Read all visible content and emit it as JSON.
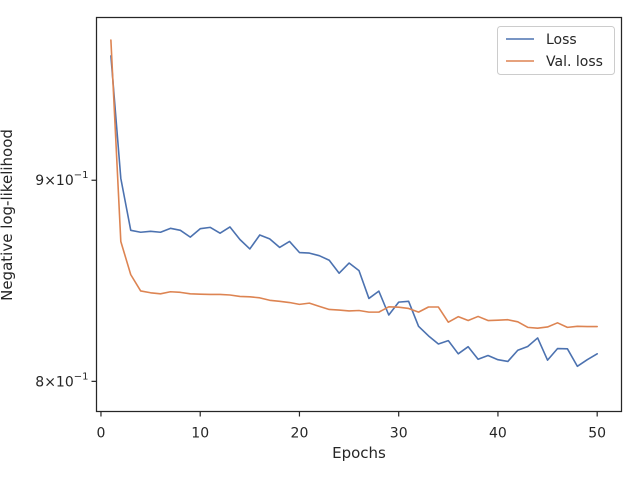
{
  "chart_data": {
    "type": "line",
    "xlabel": "Epochs",
    "ylabel": "Negative log-likelihood",
    "xlim": [
      -0.45,
      52.45
    ],
    "ylim": [
      0.786,
      0.99
    ],
    "yscale": "log",
    "grid": false,
    "legend_position": "top-right",
    "x_ticks": [
      0,
      10,
      20,
      30,
      40,
      50
    ],
    "x_tick_labels": [
      "0",
      "10",
      "20",
      "30",
      "40",
      "50"
    ],
    "y_ticks": [
      0.8,
      0.9
    ],
    "y_tick_labels": [
      {
        "mantissa": "8",
        "times": "×",
        "base": "10",
        "exp": "−1"
      },
      {
        "mantissa": "9",
        "times": "×",
        "base": "10",
        "exp": "−1"
      }
    ],
    "x": [
      1,
      2,
      3,
      4,
      5,
      6,
      7,
      8,
      9,
      10,
      11,
      12,
      13,
      14,
      15,
      16,
      17,
      18,
      19,
      20,
      21,
      22,
      23,
      24,
      25,
      26,
      27,
      28,
      29,
      30,
      31,
      32,
      33,
      34,
      35,
      36,
      37,
      38,
      39,
      40,
      41,
      42,
      43,
      44,
      45,
      46,
      47,
      48,
      49,
      50
    ],
    "series": [
      {
        "name": "Loss",
        "color": "#4c72b0",
        "values": [
          0.968,
          0.901,
          0.874,
          0.873,
          0.8735,
          0.873,
          0.875,
          0.874,
          0.8705,
          0.8748,
          0.8755,
          0.8725,
          0.8757,
          0.8693,
          0.8645,
          0.8716,
          0.8696,
          0.8653,
          0.8683,
          0.8627,
          0.8624,
          0.8611,
          0.8588,
          0.8523,
          0.8574,
          0.8536,
          0.8398,
          0.8434,
          0.8317,
          0.838,
          0.8384,
          0.8262,
          0.8216,
          0.8177,
          0.8193,
          0.813,
          0.8164,
          0.8104,
          0.8122,
          0.8102,
          0.8094,
          0.8147,
          0.8165,
          0.8206,
          0.81,
          0.8155,
          0.8154,
          0.8071,
          0.8102,
          0.813
        ]
      },
      {
        "name": "Val. loss",
        "color": "#dd8452",
        "values": [
          0.977,
          0.8683,
          0.8516,
          0.8435,
          0.8426,
          0.8421,
          0.8431,
          0.8428,
          0.8421,
          0.8419,
          0.8418,
          0.8418,
          0.8415,
          0.8408,
          0.8406,
          0.8401,
          0.8389,
          0.8384,
          0.8378,
          0.8369,
          0.8375,
          0.8359,
          0.8344,
          0.8341,
          0.8337,
          0.8339,
          0.8331,
          0.8331,
          0.8357,
          0.8355,
          0.8349,
          0.8331,
          0.8356,
          0.8356,
          0.8282,
          0.8309,
          0.829,
          0.831,
          0.829,
          0.8292,
          0.8294,
          0.8284,
          0.8257,
          0.8253,
          0.8259,
          0.8279,
          0.8257,
          0.8262,
          0.8261,
          0.8261
        ]
      }
    ]
  }
}
